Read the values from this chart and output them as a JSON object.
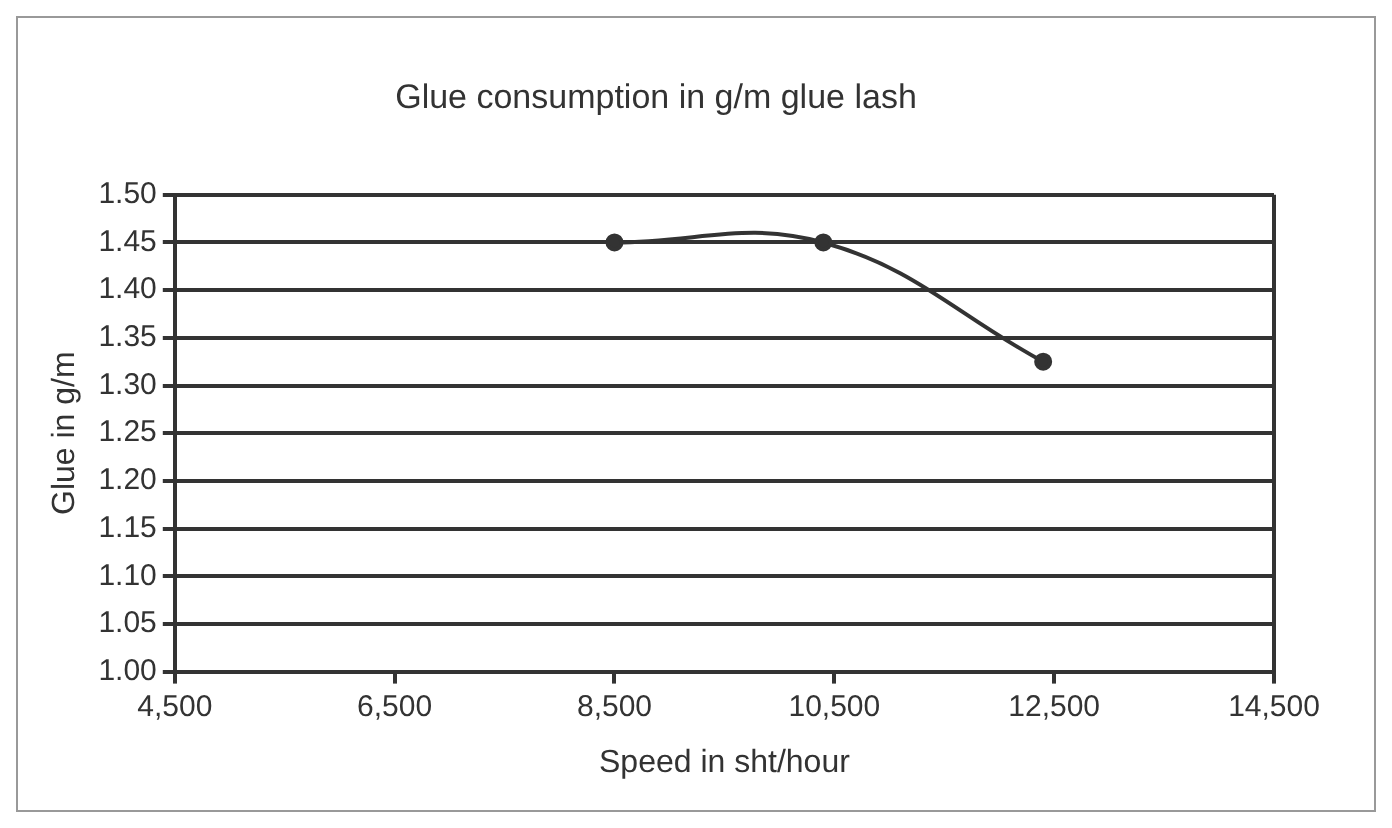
{
  "chart_data": {
    "type": "line",
    "title": "Glue consumption in g/m glue lash",
    "xlabel": "Speed in sht/hour",
    "ylabel": "Glue in g/m",
    "x": [
      8500,
      10400,
      12400
    ],
    "series": [
      {
        "color": "#333333",
        "values": [
          1.45,
          1.45,
          1.325
        ]
      }
    ],
    "xlim": [
      4500,
      14500
    ],
    "xticks": [
      {
        "value": 4500,
        "label": "4,500"
      },
      {
        "value": 6500,
        "label": "6,500"
      },
      {
        "value": 8500,
        "label": "8,500"
      },
      {
        "value": 10500,
        "label": "10,500"
      },
      {
        "value": 12500,
        "label": "12,500"
      },
      {
        "value": 14500,
        "label": "14,500"
      }
    ],
    "ylim": [
      1.0,
      1.5
    ],
    "yticks": [
      {
        "value": 1.0,
        "label": "1.00"
      },
      {
        "value": 1.05,
        "label": "1.05"
      },
      {
        "value": 1.1,
        "label": "1.10"
      },
      {
        "value": 1.15,
        "label": "1.15"
      },
      {
        "value": 1.2,
        "label": "1.20"
      },
      {
        "value": 1.25,
        "label": "1.25"
      },
      {
        "value": 1.3,
        "label": "1.30"
      },
      {
        "value": 1.35,
        "label": "1.35"
      },
      {
        "value": 1.4,
        "label": "1.40"
      },
      {
        "value": 1.45,
        "label": "1.45"
      },
      {
        "value": 1.5,
        "label": "1.50"
      }
    ],
    "grid": "y",
    "legend": false,
    "marker": "circle",
    "line_style": "solid"
  }
}
